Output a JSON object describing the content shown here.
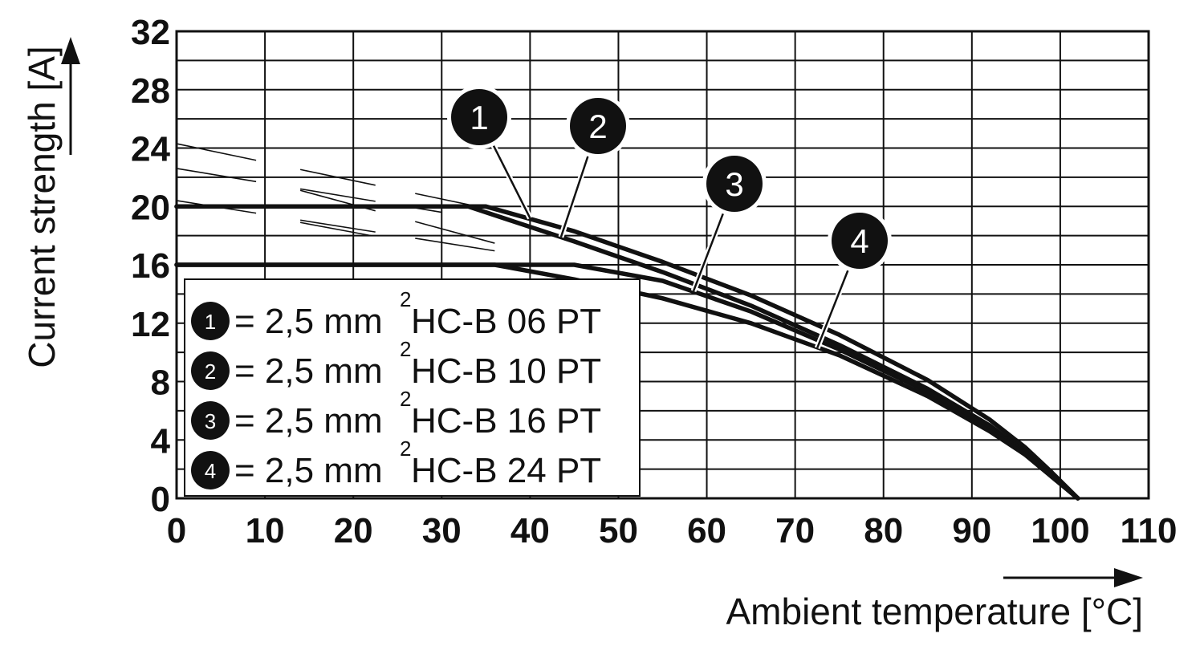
{
  "chart_data": {
    "type": "line",
    "xlabel": "Ambient temperature [°C]",
    "ylabel": "Current strength [A]",
    "xlim": [
      0,
      110
    ],
    "ylim": [
      0,
      32
    ],
    "x_ticks": [
      "0",
      "10",
      "20",
      "30",
      "40",
      "50",
      "60",
      "70",
      "80",
      "90",
      "100",
      "110"
    ],
    "y_ticks": [
      "0",
      "4",
      "8",
      "12",
      "16",
      "20",
      "24",
      "28",
      "32"
    ],
    "grid": true,
    "legend_position": "bottom-left",
    "series": [
      {
        "name": "1",
        "label": "= 2,5 mm",
        "superscript": "2",
        "product": " HC-B 06 PT",
        "x": [
          0,
          35,
          45,
          55,
          65,
          75,
          85,
          92,
          96,
          99,
          101,
          102
        ],
        "y": [
          20,
          20,
          18.3,
          16.2,
          13.9,
          11.2,
          8.1,
          5.4,
          3.5,
          1.8,
          0.6,
          0
        ]
      },
      {
        "name": "2",
        "label": "= 2,5 mm",
        "superscript": "2",
        "product": " HC-B 10 PT",
        "x": [
          0,
          33,
          45,
          55,
          65,
          75,
          85,
          92,
          96,
          99,
          101,
          102
        ],
        "y": [
          20,
          20,
          17.6,
          15.5,
          13.2,
          10.5,
          7.5,
          5.0,
          3.2,
          1.6,
          0.5,
          0
        ]
      },
      {
        "name": "3",
        "label": "= 2,5 mm",
        "superscript": "2",
        "product": " HC-B 16 PT",
        "x": [
          0,
          45,
          55,
          65,
          75,
          85,
          92,
          96,
          99,
          101,
          102
        ],
        "y": [
          16,
          16,
          14.9,
          12.8,
          10.2,
          7.3,
          4.8,
          3.1,
          1.5,
          0.5,
          0
        ]
      },
      {
        "name": "4",
        "label": "= 2,5 mm",
        "superscript": "2",
        "product": " HC-B 24 PT",
        "x": [
          0,
          36,
          45,
          55,
          65,
          75,
          85,
          92,
          96,
          99,
          101,
          102
        ],
        "y": [
          16,
          16,
          15.0,
          13.7,
          12.0,
          9.8,
          7.0,
          4.6,
          3.0,
          1.5,
          0.5,
          0
        ]
      }
    ],
    "callouts": [
      {
        "series": "1",
        "x": 40,
        "y": 19.2
      },
      {
        "series": "2",
        "x": 43.5,
        "y": 17.9
      },
      {
        "series": "3",
        "x": 58.5,
        "y": 14.2
      },
      {
        "series": "4",
        "x": 72.5,
        "y": 10.3
      }
    ]
  }
}
